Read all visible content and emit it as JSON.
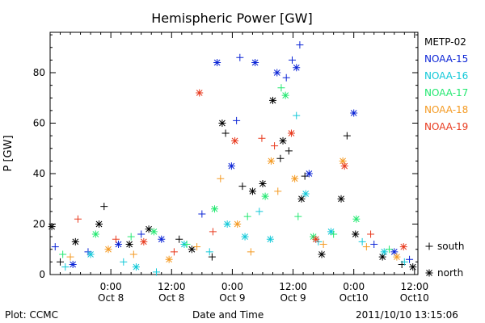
{
  "chart_data": {
    "type": "scatter",
    "title": "Hemispheric Power [GW]",
    "xlabel": "Date and Time",
    "ylabel": "P [GW]",
    "ylim": [
      0,
      96
    ],
    "yticks": [
      0,
      20,
      40,
      60,
      80
    ],
    "xlim": [
      "2011-10-07 12:00",
      "2011-10-10 12:40"
    ],
    "xticks": [
      {
        "x": "2011-10-08 00:00",
        "time": "0:00",
        "date": "Oct 8"
      },
      {
        "x": "2011-10-08 12:00",
        "time": "12:00",
        "date": "Oct 8"
      },
      {
        "x": "2011-10-09 00:00",
        "time": "0:00",
        "date": "Oct 9"
      },
      {
        "x": "2011-10-09 12:00",
        "time": "12:00",
        "date": "Oct 9"
      },
      {
        "x": "2011-10-10 00:00",
        "time": "0:00",
        "date": "Oct10"
      },
      {
        "x": "2011-10-10 12:00",
        "time": "12:00",
        "date": "Oct10"
      }
    ],
    "markers": [
      {
        "symbol": "+",
        "label": "south"
      },
      {
        "symbol": "*",
        "label": "north"
      }
    ],
    "series": [
      {
        "name": "METP-02",
        "color": "#000000",
        "points": [
          {
            "x": "2011-10-07 12:20",
            "y": 19,
            "hemi": "north"
          },
          {
            "x": "2011-10-07 14:00",
            "y": 5,
            "hemi": "south"
          },
          {
            "x": "2011-10-07 17:00",
            "y": 13,
            "hemi": "north"
          },
          {
            "x": "2011-10-07 21:40",
            "y": 20,
            "hemi": "north"
          },
          {
            "x": "2011-10-07 22:40",
            "y": 27,
            "hemi": "south"
          },
          {
            "x": "2011-10-08 03:40",
            "y": 12,
            "hemi": "north"
          },
          {
            "x": "2011-10-08 07:30",
            "y": 18,
            "hemi": "north"
          },
          {
            "x": "2011-10-08 13:30",
            "y": 14,
            "hemi": "south"
          },
          {
            "x": "2011-10-08 16:00",
            "y": 10,
            "hemi": "north"
          },
          {
            "x": "2011-10-08 20:00",
            "y": 7,
            "hemi": "south"
          },
          {
            "x": "2011-10-08 22:00",
            "y": 60,
            "hemi": "north"
          },
          {
            "x": "2011-10-08 22:40",
            "y": 56,
            "hemi": "south"
          },
          {
            "x": "2011-10-09 02:00",
            "y": 35,
            "hemi": "south"
          },
          {
            "x": "2011-10-09 04:00",
            "y": 33,
            "hemi": "north"
          },
          {
            "x": "2011-10-09 06:00",
            "y": 36,
            "hemi": "north"
          },
          {
            "x": "2011-10-09 08:00",
            "y": 69,
            "hemi": "north"
          },
          {
            "x": "2011-10-09 09:30",
            "y": 46,
            "hemi": "south"
          },
          {
            "x": "2011-10-09 10:00",
            "y": 53,
            "hemi": "north"
          },
          {
            "x": "2011-10-09 11:10",
            "y": 49,
            "hemi": "south"
          },
          {
            "x": "2011-10-09 13:40",
            "y": 30,
            "hemi": "north"
          },
          {
            "x": "2011-10-09 14:20",
            "y": 39,
            "hemi": "south"
          },
          {
            "x": "2011-10-09 17:40",
            "y": 8,
            "hemi": "north"
          },
          {
            "x": "2011-10-09 21:30",
            "y": 30,
            "hemi": "north"
          },
          {
            "x": "2011-10-09 22:40",
            "y": 55,
            "hemi": "south"
          },
          {
            "x": "2011-10-10 00:20",
            "y": 16,
            "hemi": "north"
          },
          {
            "x": "2011-10-10 05:40",
            "y": 7,
            "hemi": "north"
          },
          {
            "x": "2011-10-10 09:30",
            "y": 4,
            "hemi": "south"
          },
          {
            "x": "2011-10-10 11:40",
            "y": 3,
            "hemi": "north"
          }
        ]
      },
      {
        "name": "NOAA-15",
        "color": "#0b24d6",
        "points": [
          {
            "x": "2011-10-07 13:00",
            "y": 11,
            "hemi": "south"
          },
          {
            "x": "2011-10-07 16:30",
            "y": 4,
            "hemi": "north"
          },
          {
            "x": "2011-10-07 19:30",
            "y": 9,
            "hemi": "south"
          },
          {
            "x": "2011-10-08 01:30",
            "y": 12,
            "hemi": "north"
          },
          {
            "x": "2011-10-08 06:00",
            "y": 16,
            "hemi": "south"
          },
          {
            "x": "2011-10-08 10:00",
            "y": 14,
            "hemi": "north"
          },
          {
            "x": "2011-10-08 18:00",
            "y": 24,
            "hemi": "south"
          },
          {
            "x": "2011-10-08 21:00",
            "y": 84,
            "hemi": "north"
          },
          {
            "x": "2011-10-08 23:50",
            "y": 43,
            "hemi": "north"
          },
          {
            "x": "2011-10-09 00:50",
            "y": 61,
            "hemi": "south"
          },
          {
            "x": "2011-10-09 01:30",
            "y": 86,
            "hemi": "south"
          },
          {
            "x": "2011-10-09 04:30",
            "y": 84,
            "hemi": "north"
          },
          {
            "x": "2011-10-09 08:50",
            "y": 80,
            "hemi": "north"
          },
          {
            "x": "2011-10-09 10:40",
            "y": 78,
            "hemi": "south"
          },
          {
            "x": "2011-10-09 11:50",
            "y": 85,
            "hemi": "south"
          },
          {
            "x": "2011-10-09 12:40",
            "y": 82,
            "hemi": "north"
          },
          {
            "x": "2011-10-09 13:20",
            "y": 91,
            "hemi": "south"
          },
          {
            "x": "2011-10-09 15:10",
            "y": 40,
            "hemi": "north"
          },
          {
            "x": "2011-10-10 00:00",
            "y": 64,
            "hemi": "north"
          },
          {
            "x": "2011-10-10 04:00",
            "y": 12,
            "hemi": "south"
          },
          {
            "x": "2011-10-10 08:00",
            "y": 9,
            "hemi": "north"
          },
          {
            "x": "2011-10-10 11:00",
            "y": 6,
            "hemi": "south"
          }
        ]
      },
      {
        "name": "NOAA-16",
        "color": "#10c8d8",
        "points": [
          {
            "x": "2011-10-07 15:00",
            "y": 3,
            "hemi": "south"
          },
          {
            "x": "2011-10-07 20:00",
            "y": 8,
            "hemi": "north"
          },
          {
            "x": "2011-10-08 02:30",
            "y": 5,
            "hemi": "south"
          },
          {
            "x": "2011-10-08 05:00",
            "y": 3,
            "hemi": "north"
          },
          {
            "x": "2011-10-08 09:00",
            "y": 1,
            "hemi": "south"
          },
          {
            "x": "2011-10-08 14:30",
            "y": 12,
            "hemi": "north"
          },
          {
            "x": "2011-10-08 19:30",
            "y": 9,
            "hemi": "south"
          },
          {
            "x": "2011-10-08 23:00",
            "y": 20,
            "hemi": "north"
          },
          {
            "x": "2011-10-09 02:30",
            "y": 15,
            "hemi": "north"
          },
          {
            "x": "2011-10-09 05:20",
            "y": 25,
            "hemi": "south"
          },
          {
            "x": "2011-10-09 07:30",
            "y": 14,
            "hemi": "north"
          },
          {
            "x": "2011-10-09 12:40",
            "y": 63,
            "hemi": "south"
          },
          {
            "x": "2011-10-09 14:30",
            "y": 32,
            "hemi": "north"
          },
          {
            "x": "2011-10-09 17:00",
            "y": 13,
            "hemi": "south"
          },
          {
            "x": "2011-10-09 19:30",
            "y": 17,
            "hemi": "north"
          },
          {
            "x": "2011-10-10 01:40",
            "y": 13,
            "hemi": "south"
          },
          {
            "x": "2011-10-10 06:00",
            "y": 9,
            "hemi": "north"
          },
          {
            "x": "2011-10-10 10:00",
            "y": 5,
            "hemi": "south"
          }
        ]
      },
      {
        "name": "NOAA-17",
        "color": "#22e870",
        "points": [
          {
            "x": "2011-10-07 14:30",
            "y": 8,
            "hemi": "south"
          },
          {
            "x": "2011-10-07 21:00",
            "y": 16,
            "hemi": "north"
          },
          {
            "x": "2011-10-08 04:00",
            "y": 15,
            "hemi": "south"
          },
          {
            "x": "2011-10-08 08:30",
            "y": 17,
            "hemi": "north"
          },
          {
            "x": "2011-10-08 15:00",
            "y": 12,
            "hemi": "south"
          },
          {
            "x": "2011-10-08 20:30",
            "y": 26,
            "hemi": "north"
          },
          {
            "x": "2011-10-09 03:00",
            "y": 23,
            "hemi": "south"
          },
          {
            "x": "2011-10-09 06:30",
            "y": 31,
            "hemi": "north"
          },
          {
            "x": "2011-10-09 09:40",
            "y": 74,
            "hemi": "south"
          },
          {
            "x": "2011-10-09 10:30",
            "y": 71,
            "hemi": "north"
          },
          {
            "x": "2011-10-09 13:00",
            "y": 23,
            "hemi": "south"
          },
          {
            "x": "2011-10-09 16:00",
            "y": 15,
            "hemi": "north"
          },
          {
            "x": "2011-10-09 20:00",
            "y": 16,
            "hemi": "south"
          },
          {
            "x": "2011-10-10 00:30",
            "y": 22,
            "hemi": "north"
          },
          {
            "x": "2011-10-10 07:00",
            "y": 10,
            "hemi": "south"
          }
        ]
      },
      {
        "name": "NOAA-18",
        "color": "#f49a22",
        "points": [
          {
            "x": "2011-10-07 16:00",
            "y": 7,
            "hemi": "south"
          },
          {
            "x": "2011-10-07 23:30",
            "y": 10,
            "hemi": "north"
          },
          {
            "x": "2011-10-08 04:30",
            "y": 8,
            "hemi": "south"
          },
          {
            "x": "2011-10-08 11:30",
            "y": 6,
            "hemi": "north"
          },
          {
            "x": "2011-10-08 17:00",
            "y": 11,
            "hemi": "south"
          },
          {
            "x": "2011-10-08 21:40",
            "y": 38,
            "hemi": "south"
          },
          {
            "x": "2011-10-09 01:00",
            "y": 20,
            "hemi": "north"
          },
          {
            "x": "2011-10-09 03:40",
            "y": 9,
            "hemi": "south"
          },
          {
            "x": "2011-10-09 07:40",
            "y": 45,
            "hemi": "north"
          },
          {
            "x": "2011-10-09 09:00",
            "y": 33,
            "hemi": "south"
          },
          {
            "x": "2011-10-09 12:20",
            "y": 38,
            "hemi": "north"
          },
          {
            "x": "2011-10-09 18:00",
            "y": 12,
            "hemi": "south"
          },
          {
            "x": "2011-10-09 21:50",
            "y": 45,
            "hemi": "north"
          },
          {
            "x": "2011-10-10 02:30",
            "y": 11,
            "hemi": "south"
          },
          {
            "x": "2011-10-10 08:30",
            "y": 7,
            "hemi": "north"
          }
        ]
      },
      {
        "name": "NOAA-19",
        "color": "#e83a1e",
        "points": [
          {
            "x": "2011-10-07 17:30",
            "y": 22,
            "hemi": "south"
          },
          {
            "x": "2011-10-08 01:00",
            "y": 14,
            "hemi": "south"
          },
          {
            "x": "2011-10-08 06:30",
            "y": 13,
            "hemi": "north"
          },
          {
            "x": "2011-10-08 12:30",
            "y": 9,
            "hemi": "south"
          },
          {
            "x": "2011-10-08 17:30",
            "y": 72,
            "hemi": "north"
          },
          {
            "x": "2011-10-08 20:10",
            "y": 17,
            "hemi": "south"
          },
          {
            "x": "2011-10-09 00:30",
            "y": 53,
            "hemi": "north"
          },
          {
            "x": "2011-10-09 05:50",
            "y": 54,
            "hemi": "south"
          },
          {
            "x": "2011-10-09 08:20",
            "y": 51,
            "hemi": "south"
          },
          {
            "x": "2011-10-09 11:40",
            "y": 56,
            "hemi": "north"
          },
          {
            "x": "2011-10-09 16:30",
            "y": 14,
            "hemi": "north"
          },
          {
            "x": "2011-10-09 22:10",
            "y": 43,
            "hemi": "north"
          },
          {
            "x": "2011-10-10 03:20",
            "y": 16,
            "hemi": "south"
          },
          {
            "x": "2011-10-10 09:50",
            "y": 11,
            "hemi": "north"
          }
        ]
      }
    ]
  },
  "footer": {
    "left": "Plot: CCMC",
    "center": "Date and Time",
    "right": "2011/10/10 13:15:06"
  }
}
